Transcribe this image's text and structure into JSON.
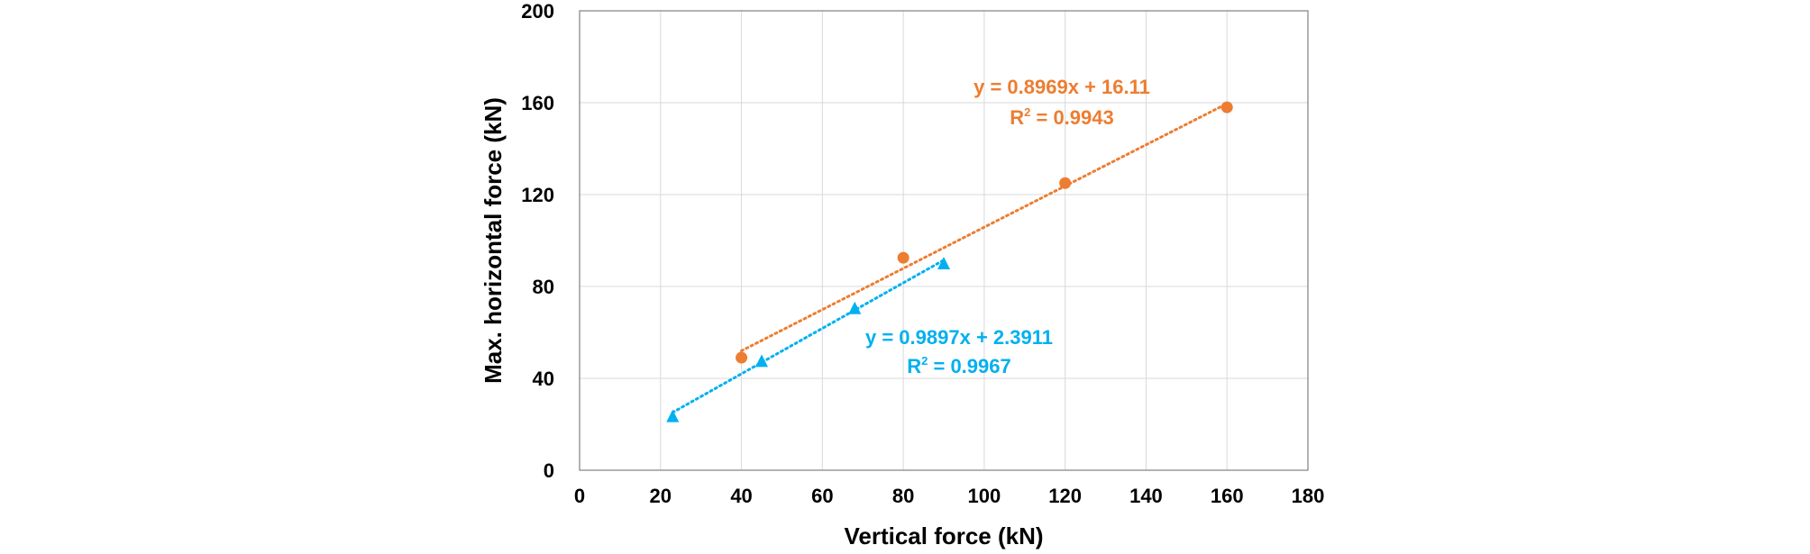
{
  "chart_data": {
    "type": "scatter",
    "xlabel": "Vertical force (kN)",
    "ylabel": "Max. horizontal force (kN)",
    "xlim": [
      0,
      180
    ],
    "ylim": [
      0,
      200
    ],
    "x_ticks": [
      "0",
      "20",
      "40",
      "60",
      "80",
      "100",
      "120",
      "140",
      "160",
      "180"
    ],
    "y_ticks": [
      "0",
      "40",
      "80",
      "120",
      "160",
      "200"
    ],
    "grid": true,
    "legend": "none",
    "series": [
      {
        "marker": "circle",
        "color": "#ED7D31",
        "points": [
          [
            40,
            49
          ],
          [
            80,
            92.5
          ],
          [
            120,
            125
          ],
          [
            160,
            158
          ]
        ],
        "trendline": {
          "slope": 0.8969,
          "intercept": 16.11,
          "x_range": [
            40,
            160
          ]
        },
        "equation": "y = 0.8969x + 16.11",
        "r2_prefix": "R",
        "r2_sup": "2",
        "r2_value": " = 0.9943"
      },
      {
        "marker": "triangle",
        "color": "#00B0F0",
        "points": [
          [
            23,
            23.5
          ],
          [
            45,
            47.5
          ],
          [
            68,
            70.5
          ],
          [
            90,
            90
          ]
        ],
        "trendline": {
          "slope": 0.9897,
          "intercept": 2.3911,
          "x_range": [
            23,
            90
          ]
        },
        "equation": "y = 0.9897x + 2.3911",
        "r2_prefix": "R",
        "r2_sup": "2",
        "r2_value": " = 0.9967"
      }
    ]
  }
}
